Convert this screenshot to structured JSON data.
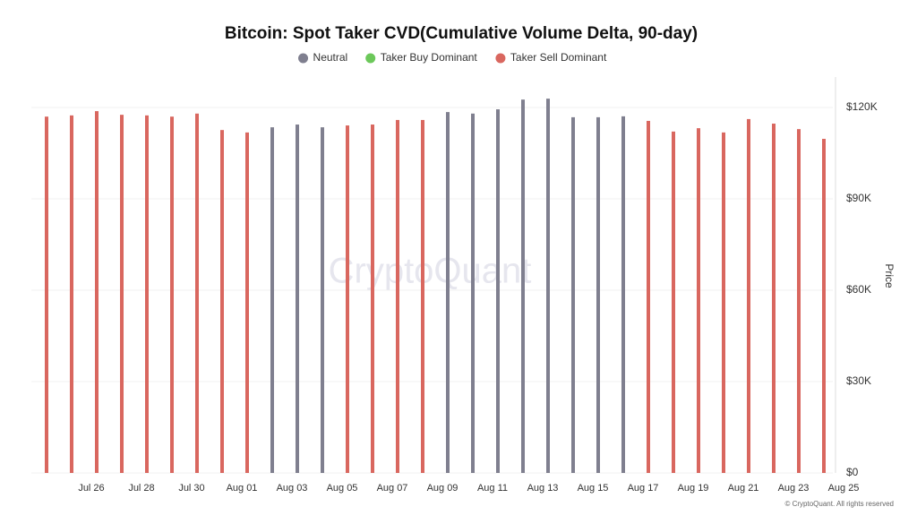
{
  "chart_data": {
    "type": "bar",
    "title": "Bitcoin: Spot Taker CVD(Cumulative Volume Delta, 90-day)",
    "y_axis_label": "Price",
    "watermark": "CryptoQuant",
    "footer": "© CryptoQuant. All rights reserved",
    "categories": [
      null,
      "Jul 26",
      null,
      "Jul 28",
      null,
      "Jul 30",
      null,
      "Aug 01",
      null,
      "Aug 03",
      null,
      "Aug 05",
      null,
      "Aug 07",
      null,
      "Aug 09",
      null,
      "Aug 11",
      null,
      "Aug 13",
      null,
      "Aug 15",
      null,
      "Aug 17",
      null,
      "Aug 19",
      null,
      "Aug 21",
      null,
      "Aug 23",
      null,
      "Aug 25"
    ],
    "series": [
      {
        "name": "Neutral",
        "color": "#7f7f8f",
        "values": [
          null,
          null,
          null,
          null,
          null,
          null,
          null,
          null,
          null,
          113500,
          114400,
          113500,
          null,
          null,
          null,
          null,
          118500,
          118000,
          119400,
          122600,
          122900,
          116800,
          116800,
          117100,
          null,
          null,
          null,
          null,
          null,
          null,
          null,
          null
        ]
      },
      {
        "name": "Taker Buy Dominant",
        "color": "#6cc85a",
        "values": [
          null,
          null,
          null,
          null,
          null,
          null,
          null,
          null,
          null,
          null,
          null,
          null,
          null,
          null,
          null,
          null,
          null,
          null,
          null,
          null,
          null,
          null,
          null,
          null,
          null,
          null,
          null,
          null,
          null,
          null,
          null,
          null
        ]
      },
      {
        "name": "Taker Sell Dominant",
        "color": "#d9675f",
        "values": [
          117000,
          117400,
          118800,
          117600,
          117400,
          117000,
          118000,
          112600,
          111800,
          null,
          null,
          null,
          114100,
          114400,
          115900,
          115900,
          null,
          null,
          null,
          null,
          null,
          null,
          null,
          null,
          115600,
          112100,
          113200,
          111800,
          116200,
          114700,
          112900,
          109700
        ]
      }
    ],
    "ylim": [
      0,
      130000
    ],
    "yticks": [
      {
        "value": 0,
        "label": "$0"
      },
      {
        "value": 30000,
        "label": "$30K"
      },
      {
        "value": 60000,
        "label": "$60K"
      },
      {
        "value": 90000,
        "label": "$90K"
      },
      {
        "value": 120000,
        "label": "$120K"
      }
    ],
    "grid": true
  }
}
